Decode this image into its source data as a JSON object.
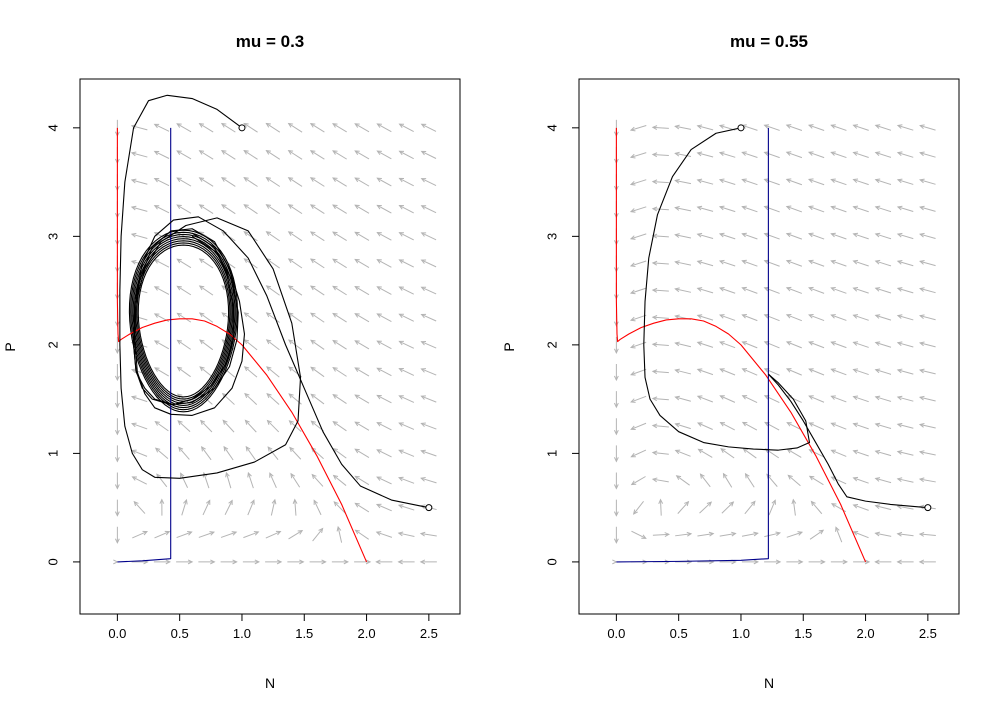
{
  "chart_data": [
    {
      "type": "line",
      "title": "mu = 0.3",
      "mu": 0.3,
      "xlabel": "N",
      "ylabel": "P",
      "xlim": [
        -0.3,
        2.75
      ],
      "ylim": [
        -0.48,
        4.45
      ],
      "xticks": [
        "0.0",
        "0.5",
        "1.0",
        "1.5",
        "2.0",
        "2.5"
      ],
      "yticks": [
        "0",
        "1",
        "2",
        "3",
        "4"
      ],
      "grid": false,
      "vector_field": {
        "color": "#b4b4b4",
        "x_range": [
          0,
          2.5
        ],
        "y_range": [
          0,
          4
        ],
        "n_x": 15,
        "n_y": 17
      },
      "series": [
        {
          "color": "#ff0000",
          "role": "N-nullcline (prey)",
          "x": [
            0.0,
            0.0,
            0.005,
            0.01,
            0.03,
            0.1,
            0.2,
            0.3,
            0.4,
            0.5,
            0.6,
            0.7,
            0.8,
            0.9,
            1.0,
            1.2,
            1.4,
            1.6,
            1.8,
            2.0
          ],
          "y": [
            4.0,
            2.4,
            2.1,
            2.03,
            2.05,
            2.1,
            2.16,
            2.2,
            2.23,
            2.24,
            2.24,
            2.22,
            2.17,
            2.1,
            2.0,
            1.72,
            1.38,
            0.98,
            0.53,
            0.0
          ]
        },
        {
          "color": "#00008b",
          "role": "P-nullcline (predator)",
          "x": [
            0.0,
            0.2,
            0.428,
            0.428,
            0.428
          ],
          "y": [
            0.0,
            0.01,
            0.03,
            0.03,
            4.0
          ]
        },
        {
          "color": "#000000",
          "role": "trajectory from (1, 4)",
          "x": [
            1.0,
            0.8,
            0.6,
            0.4,
            0.25,
            0.13,
            0.06,
            0.03,
            0.02,
            0.02,
            0.03,
            0.06,
            0.12,
            0.2,
            0.3,
            0.5,
            0.8,
            1.1,
            1.35,
            1.45,
            1.47,
            1.4,
            1.25,
            1.05,
            0.8,
            0.55,
            0.35,
            0.22,
            0.15,
            0.14,
            0.16,
            0.22,
            0.3,
            0.43,
            0.6,
            0.78,
            0.92,
            1.0,
            1.02,
            0.98,
            0.9,
            0.78,
            0.6,
            0.43,
            0.28,
            0.18,
            0.14,
            0.13,
            0.15,
            0.2,
            0.28,
            0.43,
            0.6,
            0.78,
            0.9,
            0.96,
            0.97,
            0.92,
            0.8,
            0.6
          ],
          "y": [
            4.0,
            4.17,
            4.27,
            4.3,
            4.25,
            4.0,
            3.5,
            3.0,
            2.5,
            2.0,
            1.6,
            1.25,
            1.0,
            0.85,
            0.78,
            0.77,
            0.82,
            0.92,
            1.08,
            1.3,
            1.7,
            2.2,
            2.7,
            3.05,
            3.17,
            3.1,
            2.95,
            2.7,
            2.4,
            2.05,
            1.75,
            1.55,
            1.42,
            1.36,
            1.35,
            1.42,
            1.6,
            1.85,
            2.1,
            2.4,
            2.7,
            2.95,
            3.07,
            3.05,
            2.9,
            2.6,
            2.3,
            2.0,
            1.76,
            1.6,
            1.5,
            1.45,
            1.47,
            1.6,
            1.8,
            2.05,
            2.3,
            2.6,
            2.85,
            3.0
          ]
        },
        {
          "color": "#000000",
          "role": "trajectory from (2.5, 0.5)",
          "x": [
            2.5,
            2.2,
            1.95,
            1.8,
            1.65,
            1.5,
            1.35,
            1.2,
            1.05,
            0.85,
            0.65,
            0.45,
            0.3,
            0.2,
            0.14,
            0.13,
            0.15,
            0.22,
            0.3,
            0.45,
            0.6,
            0.75,
            0.87,
            0.93,
            0.93,
            0.88,
            0.78,
            0.6
          ],
          "y": [
            0.5,
            0.57,
            0.7,
            0.9,
            1.2,
            1.6,
            2.0,
            2.45,
            2.8,
            3.05,
            3.18,
            3.15,
            3.0,
            2.75,
            2.4,
            2.0,
            1.75,
            1.6,
            1.5,
            1.45,
            1.5,
            1.62,
            1.82,
            2.05,
            2.35,
            2.65,
            2.9,
            3.03
          ]
        }
      ],
      "start_points": [
        [
          1.0,
          4.0
        ],
        [
          2.5,
          0.5
        ]
      ],
      "limit_cycle": {
        "cx": 0.53,
        "cy": 2.22,
        "rx": 0.36,
        "ry": 0.7,
        "count": 8
      }
    },
    {
      "type": "line",
      "title": "mu = 0.55",
      "mu": 0.55,
      "xlabel": "N",
      "ylabel": "P",
      "xlim": [
        -0.3,
        2.75
      ],
      "ylim": [
        -0.48,
        4.45
      ],
      "xticks": [
        "0.0",
        "0.5",
        "1.0",
        "1.5",
        "2.0",
        "2.5"
      ],
      "yticks": [
        "0",
        "1",
        "2",
        "3",
        "4"
      ],
      "grid": false,
      "vector_field": {
        "color": "#b4b4b4",
        "x_range": [
          0,
          2.5
        ],
        "y_range": [
          0,
          4
        ],
        "n_x": 15,
        "n_y": 17
      },
      "series": [
        {
          "color": "#ff0000",
          "role": "N-nullcline (prey)",
          "x": [
            0.0,
            0.0,
            0.005,
            0.01,
            0.03,
            0.1,
            0.2,
            0.3,
            0.4,
            0.5,
            0.6,
            0.7,
            0.8,
            0.9,
            1.0,
            1.2,
            1.4,
            1.6,
            1.8,
            2.0
          ],
          "y": [
            4.0,
            2.4,
            2.1,
            2.03,
            2.05,
            2.1,
            2.16,
            2.2,
            2.23,
            2.24,
            2.24,
            2.22,
            2.17,
            2.1,
            2.0,
            1.72,
            1.38,
            0.98,
            0.53,
            0.0
          ]
        },
        {
          "color": "#00008b",
          "role": "P-nullcline (predator)",
          "x": [
            0.0,
            0.5,
            1.0,
            1.22,
            1.22,
            1.22
          ],
          "y": [
            0.0,
            0.005,
            0.015,
            0.03,
            0.03,
            4.0
          ]
        },
        {
          "color": "#000000",
          "role": "trajectory from (1, 4)",
          "x": [
            1.0,
            0.8,
            0.6,
            0.45,
            0.33,
            0.26,
            0.23,
            0.22,
            0.23,
            0.27,
            0.35,
            0.5,
            0.7,
            0.9,
            1.1,
            1.3,
            1.45,
            1.55,
            1.52,
            1.42,
            1.3,
            1.22
          ],
          "y": [
            4.0,
            3.95,
            3.8,
            3.55,
            3.2,
            2.8,
            2.4,
            2.0,
            1.7,
            1.5,
            1.35,
            1.2,
            1.1,
            1.06,
            1.04,
            1.03,
            1.05,
            1.1,
            1.3,
            1.5,
            1.65,
            1.73
          ]
        },
        {
          "color": "#000000",
          "role": "trajectory from (2.5, 0.5)",
          "x": [
            2.5,
            2.2,
            2.0,
            1.85,
            1.78,
            1.7,
            1.6,
            1.5,
            1.4,
            1.3,
            1.22
          ],
          "y": [
            0.5,
            0.53,
            0.56,
            0.6,
            0.72,
            0.9,
            1.1,
            1.3,
            1.48,
            1.63,
            1.73
          ]
        }
      ],
      "start_points": [
        [
          1.0,
          4.0
        ],
        [
          2.5,
          0.5
        ]
      ],
      "equilibrium": [
        1.22,
        1.73
      ]
    }
  ]
}
